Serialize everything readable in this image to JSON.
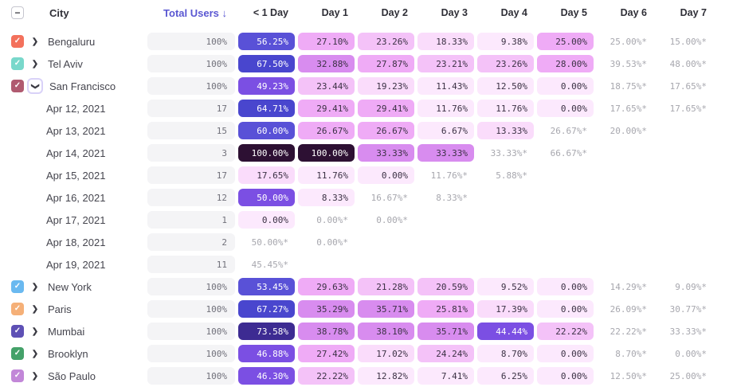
{
  "table": {
    "icons": {
      "check": "✓",
      "indeterminate": "−",
      "chevron": "❯"
    },
    "colors": {
      "est_text": "#a7a7ae",
      "pill_bg": "#f4f4f6",
      "header_sorted": "#5a57d2"
    },
    "heat_scale": [
      {
        "min": 85,
        "bg": "#2d1033",
        "fg": "#ffffff"
      },
      {
        "min": 70,
        "bg": "#3d2b92",
        "fg": "#ffffff"
      },
      {
        "min": 62,
        "bg": "#4946ce",
        "fg": "#ffffff"
      },
      {
        "min": 52,
        "bg": "#5951d7",
        "fg": "#ffffff"
      },
      {
        "min": 42,
        "bg": "#7b4fe3",
        "fg": "#ffffff"
      },
      {
        "min": 31,
        "bg": "#d88cef",
        "fg": "#3b3144"
      },
      {
        "min": 25,
        "bg": "#efabf6",
        "fg": "#3b3144"
      },
      {
        "min": 20,
        "bg": "#f4c2f8",
        "fg": "#3b3144"
      },
      {
        "min": 13,
        "bg": "#fadcfb",
        "fg": "#3b3144"
      },
      {
        "min": 0,
        "bg": "#fce9fd",
        "fg": "#3b3144"
      }
    ],
    "columns": {
      "city": "City",
      "total": "Total Users ↓",
      "days": [
        "< 1 Day",
        "Day 1",
        "Day 2",
        "Day 3",
        "Day 4",
        "Day 5",
        "Day 6",
        "Day 7"
      ]
    },
    "select_all_state": "indeterminate",
    "rows": [
      {
        "kind": "city",
        "label": "Bengaluru",
        "checkbox_color": "#f3715c",
        "checked": true,
        "expanded": false,
        "total": "100%",
        "cells": [
          {
            "t": "56.25%",
            "v": 56.25,
            "s": "heat"
          },
          {
            "t": "27.10%",
            "v": 27.1,
            "s": "heat"
          },
          {
            "t": "23.26%",
            "v": 23.26,
            "s": "heat"
          },
          {
            "t": "18.33%",
            "v": 18.33,
            "s": "heat"
          },
          {
            "t": "9.38%",
            "v": 9.38,
            "s": "heat"
          },
          {
            "t": "25.00%",
            "v": 25.0,
            "s": "heat"
          },
          {
            "t": "25.00%*",
            "s": "est"
          },
          {
            "t": "15.00%*",
            "s": "est"
          }
        ]
      },
      {
        "kind": "city",
        "label": "Tel Aviv",
        "checkbox_color": "#79d8cb",
        "checked": true,
        "expanded": false,
        "total": "100%",
        "cells": [
          {
            "t": "67.50%",
            "v": 67.5,
            "s": "heat"
          },
          {
            "t": "32.88%",
            "v": 32.88,
            "s": "heat"
          },
          {
            "t": "27.87%",
            "v": 27.87,
            "s": "heat"
          },
          {
            "t": "23.21%",
            "v": 23.21,
            "s": "heat"
          },
          {
            "t": "23.26%",
            "v": 23.26,
            "s": "heat"
          },
          {
            "t": "28.00%",
            "v": 28.0,
            "s": "heat"
          },
          {
            "t": "39.53%*",
            "s": "est"
          },
          {
            "t": "48.00%*",
            "s": "est"
          }
        ]
      },
      {
        "kind": "city",
        "label": "San Francisco",
        "checkbox_color": "#b05a70",
        "checked": true,
        "expanded": true,
        "total": "100%",
        "cells": [
          {
            "t": "49.23%",
            "v": 49.23,
            "s": "heat"
          },
          {
            "t": "23.44%",
            "v": 23.44,
            "s": "heat"
          },
          {
            "t": "19.23%",
            "v": 19.23,
            "s": "heat"
          },
          {
            "t": "11.43%",
            "v": 11.43,
            "s": "heat"
          },
          {
            "t": "12.50%",
            "v": 12.5,
            "s": "heat"
          },
          {
            "t": "0.00%",
            "v": 0,
            "s": "heat"
          },
          {
            "t": "18.75%*",
            "s": "est"
          },
          {
            "t": "17.65%*",
            "s": "est"
          }
        ]
      },
      {
        "kind": "date",
        "label": "Apr 12, 2021",
        "total": "17",
        "cells": [
          {
            "t": "64.71%",
            "v": 64.71,
            "s": "heat"
          },
          {
            "t": "29.41%",
            "v": 29.41,
            "s": "heat"
          },
          {
            "t": "29.41%",
            "v": 29.41,
            "s": "heat"
          },
          {
            "t": "11.76%",
            "v": 11.76,
            "s": "heat"
          },
          {
            "t": "11.76%",
            "v": 11.76,
            "s": "heat"
          },
          {
            "t": "0.00%",
            "v": 0,
            "s": "heat"
          },
          {
            "t": "17.65%*",
            "s": "est"
          },
          {
            "t": "17.65%*",
            "s": "est"
          }
        ]
      },
      {
        "kind": "date",
        "label": "Apr 13, 2021",
        "total": "15",
        "cells": [
          {
            "t": "60.00%",
            "v": 60.0,
            "s": "heat"
          },
          {
            "t": "26.67%",
            "v": 26.67,
            "s": "heat"
          },
          {
            "t": "26.67%",
            "v": 26.67,
            "s": "heat"
          },
          {
            "t": "6.67%",
            "v": 6.67,
            "s": "heat"
          },
          {
            "t": "13.33%",
            "v": 13.33,
            "s": "heat"
          },
          {
            "t": "26.67%*",
            "s": "est"
          },
          {
            "t": "20.00%*",
            "s": "est"
          },
          null
        ]
      },
      {
        "kind": "date",
        "label": "Apr 14, 2021",
        "total": "3",
        "cells": [
          {
            "t": "100.00%",
            "v": 100,
            "s": "heat"
          },
          {
            "t": "100.00%",
            "v": 100,
            "s": "heat"
          },
          {
            "t": "33.33%",
            "v": 33.33,
            "s": "heat"
          },
          {
            "t": "33.33%",
            "v": 33.33,
            "s": "heat"
          },
          {
            "t": "33.33%*",
            "s": "est"
          },
          {
            "t": "66.67%*",
            "s": "est"
          },
          null,
          null
        ]
      },
      {
        "kind": "date",
        "label": "Apr 15, 2021",
        "total": "17",
        "cells": [
          {
            "t": "17.65%",
            "v": 17.65,
            "s": "heat"
          },
          {
            "t": "11.76%",
            "v": 11.76,
            "s": "heat"
          },
          {
            "t": "0.00%",
            "v": 0,
            "s": "heat"
          },
          {
            "t": "11.76%*",
            "s": "est"
          },
          {
            "t": "5.88%*",
            "s": "est"
          },
          null,
          null,
          null
        ]
      },
      {
        "kind": "date",
        "label": "Apr 16, 2021",
        "total": "12",
        "cells": [
          {
            "t": "50.00%",
            "v": 50.0,
            "s": "heat"
          },
          {
            "t": "8.33%",
            "v": 8.33,
            "s": "heat"
          },
          {
            "t": "16.67%*",
            "s": "est"
          },
          {
            "t": "8.33%*",
            "s": "est"
          },
          null,
          null,
          null,
          null
        ]
      },
      {
        "kind": "date",
        "label": "Apr 17, 2021",
        "total": "1",
        "cells": [
          {
            "t": "0.00%",
            "v": 0,
            "s": "heat"
          },
          {
            "t": "0.00%*",
            "s": "est"
          },
          {
            "t": "0.00%*",
            "s": "est"
          },
          null,
          null,
          null,
          null,
          null
        ]
      },
      {
        "kind": "date",
        "label": "Apr 18, 2021",
        "total": "2",
        "cells": [
          {
            "t": "50.00%*",
            "s": "est"
          },
          {
            "t": "0.00%*",
            "s": "est"
          },
          null,
          null,
          null,
          null,
          null,
          null
        ]
      },
      {
        "kind": "date",
        "label": "Apr 19, 2021",
        "total": "11",
        "cells": [
          {
            "t": "45.45%*",
            "s": "est"
          },
          null,
          null,
          null,
          null,
          null,
          null,
          null
        ]
      },
      {
        "kind": "city",
        "label": "New York",
        "checkbox_color": "#6ab9f0",
        "checked": true,
        "expanded": false,
        "total": "100%",
        "cells": [
          {
            "t": "53.45%",
            "v": 53.45,
            "s": "heat"
          },
          {
            "t": "29.63%",
            "v": 29.63,
            "s": "heat"
          },
          {
            "t": "21.28%",
            "v": 21.28,
            "s": "heat"
          },
          {
            "t": "20.59%",
            "v": 20.59,
            "s": "heat"
          },
          {
            "t": "9.52%",
            "v": 9.52,
            "s": "heat"
          },
          {
            "t": "0.00%",
            "v": 0,
            "s": "heat"
          },
          {
            "t": "14.29%*",
            "s": "est"
          },
          {
            "t": "9.09%*",
            "s": "est"
          }
        ]
      },
      {
        "kind": "city",
        "label": "Paris",
        "checkbox_color": "#f5b078",
        "checked": true,
        "expanded": false,
        "total": "100%",
        "cells": [
          {
            "t": "67.27%",
            "v": 67.27,
            "s": "heat"
          },
          {
            "t": "35.29%",
            "v": 35.29,
            "s": "heat"
          },
          {
            "t": "35.71%",
            "v": 35.71,
            "s": "heat"
          },
          {
            "t": "25.81%",
            "v": 25.81,
            "s": "heat"
          },
          {
            "t": "17.39%",
            "v": 17.39,
            "s": "heat"
          },
          {
            "t": "0.00%",
            "v": 0,
            "s": "heat"
          },
          {
            "t": "26.09%*",
            "s": "est"
          },
          {
            "t": "30.77%*",
            "s": "est"
          }
        ]
      },
      {
        "kind": "city",
        "label": "Mumbai",
        "checkbox_color": "#5e50b5",
        "checked": true,
        "expanded": false,
        "total": "100%",
        "cells": [
          {
            "t": "73.58%",
            "v": 73.58,
            "s": "heat"
          },
          {
            "t": "38.78%",
            "v": 38.78,
            "s": "heat"
          },
          {
            "t": "38.10%",
            "v": 38.1,
            "s": "heat"
          },
          {
            "t": "35.71%",
            "v": 35.71,
            "s": "heat"
          },
          {
            "t": "44.44%",
            "v": 44.44,
            "s": "heat"
          },
          {
            "t": "22.22%",
            "v": 22.22,
            "s": "heat"
          },
          {
            "t": "22.22%*",
            "s": "est"
          },
          {
            "t": "33.33%*",
            "s": "est"
          }
        ]
      },
      {
        "kind": "city",
        "label": "Brooklyn",
        "checkbox_color": "#44a169",
        "checked": true,
        "expanded": false,
        "total": "100%",
        "cells": [
          {
            "t": "46.88%",
            "v": 46.88,
            "s": "heat"
          },
          {
            "t": "27.42%",
            "v": 27.42,
            "s": "heat"
          },
          {
            "t": "17.02%",
            "v": 17.02,
            "s": "heat"
          },
          {
            "t": "24.24%",
            "v": 24.24,
            "s": "heat"
          },
          {
            "t": "8.70%",
            "v": 8.7,
            "s": "heat"
          },
          {
            "t": "0.00%",
            "v": 0,
            "s": "heat"
          },
          {
            "t": "8.70%*",
            "s": "est"
          },
          {
            "t": "0.00%*",
            "s": "est"
          }
        ]
      },
      {
        "kind": "city",
        "label": "São Paulo",
        "checkbox_color": "#c287d8",
        "checked": true,
        "expanded": false,
        "total": "100%",
        "cells": [
          {
            "t": "46.30%",
            "v": 46.3,
            "s": "heat"
          },
          {
            "t": "22.22%",
            "v": 22.22,
            "s": "heat"
          },
          {
            "t": "12.82%",
            "v": 12.82,
            "s": "heat"
          },
          {
            "t": "7.41%",
            "v": 7.41,
            "s": "heat"
          },
          {
            "t": "6.25%",
            "v": 6.25,
            "s": "heat"
          },
          {
            "t": "0.00%",
            "v": 0,
            "s": "heat"
          },
          {
            "t": "12.50%*",
            "s": "est"
          },
          {
            "t": "25.00%*",
            "s": "est"
          }
        ]
      }
    ]
  }
}
